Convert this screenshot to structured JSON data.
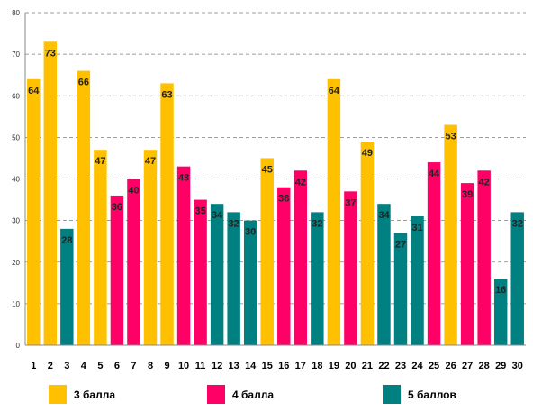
{
  "chart_data": {
    "type": "bar",
    "title": "",
    "xlabel": "",
    "ylabel": "",
    "ylim": [
      0,
      80
    ],
    "yticks": [
      0,
      10,
      20,
      30,
      40,
      50,
      60,
      70,
      80
    ],
    "grid": "horizontal-dashed",
    "legend_position": "bottom",
    "categories": [
      "1",
      "2",
      "3",
      "4",
      "5",
      "6",
      "7",
      "8",
      "9",
      "10",
      "11",
      "12",
      "13",
      "14",
      "15",
      "16",
      "17",
      "18",
      "19",
      "20",
      "21",
      "22",
      "23",
      "24",
      "25",
      "26",
      "27",
      "28",
      "29",
      "30"
    ],
    "values": [
      64,
      73,
      28,
      66,
      47,
      36,
      40,
      47,
      63,
      43,
      35,
      34,
      32,
      30,
      45,
      38,
      42,
      32,
      64,
      37,
      49,
      34,
      27,
      31,
      44,
      53,
      39,
      42,
      16,
      32
    ],
    "groups": [
      0,
      0,
      2,
      0,
      0,
      1,
      1,
      0,
      0,
      1,
      1,
      2,
      2,
      2,
      0,
      1,
      1,
      2,
      0,
      1,
      0,
      2,
      2,
      2,
      1,
      0,
      1,
      1,
      2,
      2
    ],
    "legend": [
      {
        "label": "3 балла",
        "color": "#FFC000"
      },
      {
        "label": "4 балла",
        "color": "#FF0066"
      },
      {
        "label": "5 баллов",
        "color": "#008080"
      }
    ]
  }
}
